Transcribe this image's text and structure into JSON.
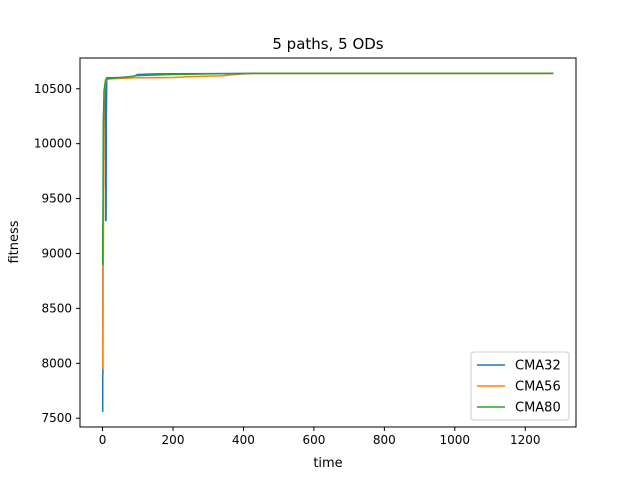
{
  "chart_data": {
    "type": "line",
    "title": "5 paths, 5 ODs",
    "xlabel": "time",
    "ylabel": "fitness",
    "xlim": [
      -64,
      1344
    ],
    "ylim": [
      7420,
      10780
    ],
    "xticks": [
      0,
      200,
      400,
      600,
      800,
      1000,
      1200
    ],
    "yticks": [
      7500,
      8000,
      8500,
      9000,
      9500,
      10000,
      10500
    ],
    "grid": false,
    "legend_position": "lower-right",
    "series": [
      {
        "name": "CMA32",
        "color": "#1f77b4",
        "x": [
          0,
          0.5,
          0.5,
          1,
          1,
          1.5,
          2,
          3,
          3,
          4,
          4,
          5,
          6,
          7,
          7,
          8,
          9,
          9,
          10,
          11,
          11,
          12,
          30,
          60,
          90,
          100,
          150,
          200,
          300,
          430,
          600,
          800,
          1000,
          1280
        ],
        "y": [
          7560,
          7560,
          7900,
          7900,
          9200,
          9200,
          9600,
          9600,
          9850,
          9850,
          10000,
          10300,
          10350,
          10450,
          10520,
          10530,
          10550,
          9300,
          9300,
          10580,
          10290,
          10600,
          10600,
          10605,
          10615,
          10630,
          10635,
          10637,
          10638,
          10640,
          10640,
          10640,
          10640,
          10640
        ]
      },
      {
        "name": "CMA56",
        "color": "#ff7f0e",
        "x": [
          0,
          0.5,
          0.5,
          1,
          1.5,
          2,
          2.5,
          3,
          3.5,
          4,
          4,
          5,
          6,
          7,
          8,
          10,
          20,
          50,
          100,
          150,
          200,
          250,
          300,
          340,
          360,
          400,
          430,
          600,
          800,
          1000,
          1280
        ],
        "y": [
          7950,
          7950,
          8000,
          8400,
          8890,
          8890,
          9100,
          9600,
          9600,
          10300,
          10350,
          10450,
          10500,
          10520,
          10550,
          10580,
          10590,
          10595,
          10600,
          10600,
          10603,
          10610,
          10615,
          10617,
          10625,
          10635,
          10640,
          10640,
          10640,
          10640,
          10640
        ]
      },
      {
        "name": "CMA80",
        "color": "#2ca02c",
        "x": [
          0,
          0.5,
          0.5,
          1,
          1.5,
          2,
          3,
          4,
          4,
          5,
          6,
          7,
          8,
          10,
          20,
          50,
          80,
          100,
          150,
          200,
          300,
          400,
          430,
          600,
          800,
          1000,
          1280
        ],
        "y": [
          8900,
          8900,
          9250,
          9250,
          9500,
          10200,
          10300,
          10450,
          10480,
          10500,
          10520,
          10550,
          10570,
          10590,
          10595,
          10600,
          10610,
          10620,
          10625,
          10630,
          10635,
          10638,
          10640,
          10640,
          10640,
          10640,
          10640
        ]
      }
    ]
  }
}
